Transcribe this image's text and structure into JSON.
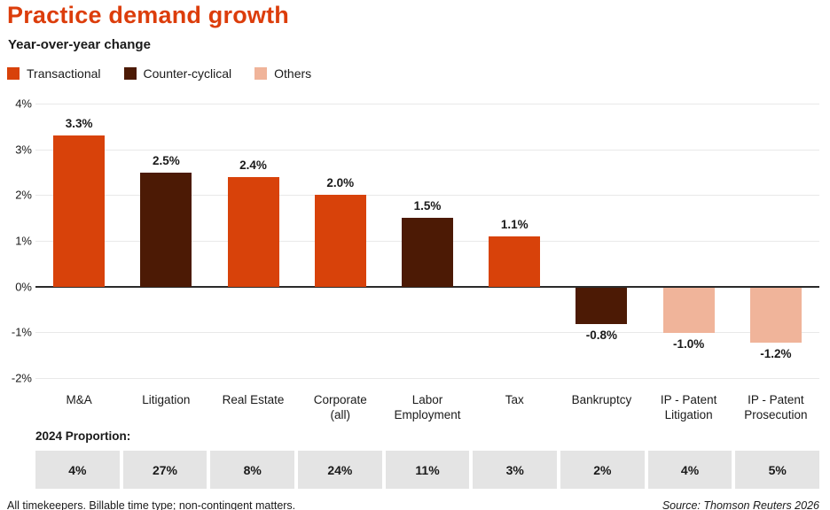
{
  "header": {
    "title": "Practice demand growth",
    "subtitle": "Year-over-year change"
  },
  "legend": [
    {
      "label": "Transactional",
      "color": "#d8420a"
    },
    {
      "label": "Counter-cyclical",
      "color": "#4c1a05"
    },
    {
      "label": "Others",
      "color": "#f0b49a"
    }
  ],
  "chart_data": {
    "type": "bar",
    "title": "Practice demand growth",
    "subtitle": "Year-over-year change",
    "categories": [
      "M&A",
      "Litigation",
      "Real Estate",
      "Corporate (all)",
      "Labor Employment",
      "Tax",
      "Bankruptcy",
      "IP - Patent Litigation",
      "IP - Patent Prosecution"
    ],
    "values": [
      3.3,
      2.5,
      2.4,
      2.0,
      1.5,
      1.1,
      -0.8,
      -1.0,
      -1.2
    ],
    "value_labels": [
      "3.3%",
      "2.5%",
      "2.4%",
      "2.0%",
      "1.5%",
      "1.1%",
      "-0.8%",
      "-1.0%",
      "-1.2%"
    ],
    "groups": [
      "Transactional",
      "Counter-cyclical",
      "Transactional",
      "Transactional",
      "Counter-cyclical",
      "Transactional",
      "Counter-cyclical",
      "Others",
      "Others"
    ],
    "ylabel": "Year-over-year change",
    "ylim": [
      -2,
      4
    ],
    "yticks": [
      4,
      3,
      2,
      1,
      0,
      -1,
      -2
    ],
    "ytick_labels": [
      "4%",
      "3%",
      "2%",
      "1%",
      "0%",
      "-1%",
      "-2%"
    ],
    "grid": true,
    "legend_position": "top-left"
  },
  "proportions": {
    "label": "2024 Proportion:",
    "values": [
      "4%",
      "27%",
      "8%",
      "24%",
      "11%",
      "3%",
      "2%",
      "4%",
      "5%"
    ]
  },
  "footer": {
    "note": "All timekeepers. Billable time type; non-contingent matters.",
    "source": "Source: Thomson Reuters 2026"
  },
  "colors": {
    "accent": "#dc3d0b",
    "grid": "#e9e9e9",
    "zero_line": "#2b2b2b",
    "proportion_cell_bg": "#e4e4e4",
    "text": "#1a1a1a"
  }
}
